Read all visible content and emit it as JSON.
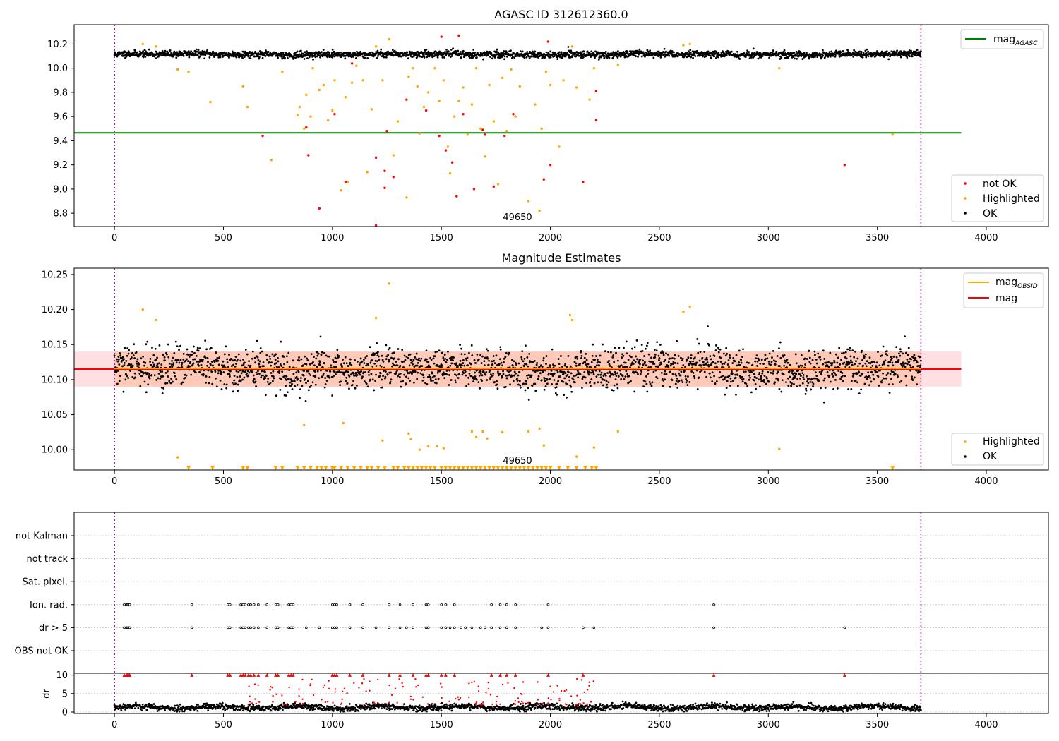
{
  "chart_data": [
    {
      "id": "panel-agasc",
      "type": "scatter",
      "title": "AGASC ID 312612360.0",
      "xlim": [
        -185,
        4285
      ],
      "ylim": [
        8.69,
        10.36
      ],
      "x_ticks": [
        0,
        500,
        1000,
        1500,
        2000,
        2500,
        3000,
        3500,
        4000
      ],
      "y_ticks": [
        8.8,
        9.0,
        9.2,
        9.4,
        9.6,
        9.8,
        10.0,
        10.2
      ],
      "y_tick_labels": [
        "8.8",
        "9.0",
        "9.2",
        "9.4",
        "9.6",
        "9.8",
        "10.0",
        "10.2"
      ],
      "vlines": [
        0,
        3700
      ],
      "hline": {
        "name": "mag_AGASC",
        "y": 9.465,
        "x": [
          -185,
          3885
        ],
        "color": "#008000"
      },
      "annotation": {
        "text": "49650",
        "x": 1850,
        "y": 8.73
      },
      "legend_upper": [
        {
          "label": "mag",
          "sub": "AGASC",
          "color": "#008000",
          "kind": "line"
        }
      ],
      "legend_lower": [
        {
          "label": "not OK",
          "color": "#ff0000",
          "kind": "dot"
        },
        {
          "label": "Highlighted",
          "color": "#ffa500",
          "kind": "dot"
        },
        {
          "label": "OK",
          "color": "#000000",
          "kind": "dot"
        }
      ],
      "series": [
        {
          "name": "OK",
          "color": "#000000",
          "x_range": [
            0,
            3700
          ],
          "y_center": 10.115,
          "y_spread": 0.025,
          "points": 2400
        },
        {
          "name": "Highlighted",
          "color": "#ffa500",
          "points_xy": [
            [
              130,
              10.2
            ],
            [
              190,
              10.18
            ],
            [
              290,
              9.99
            ],
            [
              340,
              9.97
            ],
            [
              440,
              9.72
            ],
            [
              590,
              9.85
            ],
            [
              610,
              9.68
            ],
            [
              720,
              9.24
            ],
            [
              770,
              9.97
            ],
            [
              840,
              9.61
            ],
            [
              850,
              9.68
            ],
            [
              870,
              9.5
            ],
            [
              880,
              9.78
            ],
            [
              900,
              9.6
            ],
            [
              910,
              10.0
            ],
            [
              940,
              9.82
            ],
            [
              960,
              9.86
            ],
            [
              980,
              9.57
            ],
            [
              1000,
              9.65
            ],
            [
              1010,
              9.9
            ],
            [
              1040,
              8.99
            ],
            [
              1060,
              9.76
            ],
            [
              1070,
              9.06
            ],
            [
              1090,
              9.88
            ],
            [
              1110,
              10.02
            ],
            [
              1140,
              9.9
            ],
            [
              1160,
              9.14
            ],
            [
              1180,
              9.66
            ],
            [
              1200,
              10.18
            ],
            [
              1230,
              9.9
            ],
            [
              1260,
              10.24
            ],
            [
              1280,
              9.28
            ],
            [
              1300,
              9.56
            ],
            [
              1340,
              8.93
            ],
            [
              1350,
              9.93
            ],
            [
              1370,
              10.0
            ],
            [
              1390,
              9.85
            ],
            [
              1400,
              9.46
            ],
            [
              1420,
              9.68
            ],
            [
              1440,
              9.8
            ],
            [
              1470,
              10.0
            ],
            [
              1490,
              9.73
            ],
            [
              1510,
              9.9
            ],
            [
              1530,
              9.35
            ],
            [
              1540,
              9.13
            ],
            [
              1560,
              9.6
            ],
            [
              1580,
              9.73
            ],
            [
              1600,
              9.84
            ],
            [
              1620,
              9.45
            ],
            [
              1640,
              9.7
            ],
            [
              1660,
              10.0
            ],
            [
              1680,
              9.5
            ],
            [
              1700,
              9.27
            ],
            [
              1720,
              9.86
            ],
            [
              1740,
              9.56
            ],
            [
              1760,
              9.04
            ],
            [
              1780,
              9.92
            ],
            [
              1800,
              9.48
            ],
            [
              1820,
              9.99
            ],
            [
              1840,
              9.6
            ],
            [
              1860,
              9.85
            ],
            [
              1900,
              8.9
            ],
            [
              1930,
              9.7
            ],
            [
              1950,
              8.82
            ],
            [
              1960,
              9.5
            ],
            [
              1980,
              9.97
            ],
            [
              2000,
              9.86
            ],
            [
              2040,
              9.35
            ],
            [
              2060,
              9.9
            ],
            [
              2100,
              10.18
            ],
            [
              2120,
              9.84
            ],
            [
              2180,
              9.74
            ],
            [
              2200,
              10.0
            ],
            [
              2310,
              10.03
            ],
            [
              2610,
              10.19
            ],
            [
              2640,
              10.2
            ],
            [
              3050,
              10.0
            ],
            [
              3570,
              9.45
            ]
          ]
        },
        {
          "name": "not OK",
          "color": "#ff0000",
          "points_xy": [
            [
              680,
              9.44
            ],
            [
              880,
              9.51
            ],
            [
              890,
              9.28
            ],
            [
              940,
              8.84
            ],
            [
              1010,
              9.62
            ],
            [
              1060,
              9.06
            ],
            [
              1090,
              10.04
            ],
            [
              1200,
              9.26
            ],
            [
              1200,
              8.7
            ],
            [
              1240,
              9.01
            ],
            [
              1240,
              9.15
            ],
            [
              1250,
              9.48
            ],
            [
              1280,
              9.1
            ],
            [
              1340,
              9.74
            ],
            [
              1430,
              9.65
            ],
            [
              1490,
              9.44
            ],
            [
              1500,
              10.26
            ],
            [
              1520,
              9.32
            ],
            [
              1550,
              9.22
            ],
            [
              1570,
              8.94
            ],
            [
              1580,
              10.27
            ],
            [
              1600,
              9.62
            ],
            [
              1650,
              9.0
            ],
            [
              1690,
              9.49
            ],
            [
              1700,
              9.45
            ],
            [
              1740,
              9.02
            ],
            [
              1790,
              9.44
            ],
            [
              1830,
              9.62
            ],
            [
              1970,
              9.08
            ],
            [
              1990,
              10.22
            ],
            [
              2000,
              9.2
            ],
            [
              2150,
              9.06
            ],
            [
              2210,
              9.57
            ],
            [
              2210,
              9.81
            ],
            [
              3350,
              9.2
            ]
          ]
        }
      ]
    },
    {
      "id": "panel-estimates",
      "type": "scatter",
      "title": "Magnitude Estimates",
      "xlim": [
        -185,
        4285
      ],
      "ylim": [
        9.971,
        10.259
      ],
      "x_ticks": [
        0,
        500,
        1000,
        1500,
        2000,
        2500,
        3000,
        3500,
        4000
      ],
      "y_ticks": [
        10.0,
        10.05,
        10.1,
        10.15,
        10.2,
        10.25
      ],
      "y_tick_labels": [
        "10.00",
        "10.05",
        "10.10",
        "10.15",
        "10.20",
        "10.25"
      ],
      "vlines": [
        0,
        3700
      ],
      "band_full": {
        "y": [
          10.09,
          10.14
        ],
        "x": [
          -185,
          3885
        ],
        "color": "#ffdfe2"
      },
      "band_obs": {
        "y": [
          10.09,
          10.14
        ],
        "x": [
          0,
          3700
        ],
        "color": "#ffc9b8"
      },
      "hline_mag": {
        "name": "mag",
        "y": 10.115,
        "x": [
          -185,
          3885
        ],
        "color": "#ff0000"
      },
      "hline_obsid": {
        "name": "mag_OBSID",
        "y": 10.115,
        "x": [
          0,
          3700
        ],
        "color": "#ffa500"
      },
      "annotation": {
        "text": "49650",
        "x": 1850,
        "y": 9.984
      },
      "legend_upper": [
        {
          "label": "mag",
          "sub": "OBSID",
          "color": "#ffa500",
          "kind": "line"
        },
        {
          "label": "mag",
          "sub": "",
          "color": "#ff0000",
          "kind": "line"
        }
      ],
      "legend_lower": [
        {
          "label": "Highlighted",
          "color": "#ffa500",
          "kind": "dot"
        },
        {
          "label": "OK",
          "color": "#000000",
          "kind": "dot"
        }
      ],
      "series": [
        {
          "name": "OK",
          "color": "#000000",
          "x_range": [
            0,
            3700
          ],
          "y_center": 10.115,
          "y_spread": 0.025,
          "points": 2400
        },
        {
          "name": "Highlighted",
          "color": "#ffa500",
          "points_xy": [
            [
              130,
              10.2
            ],
            [
              190,
              10.185
            ],
            [
              290,
              9.989
            ],
            [
              870,
              10.035
            ],
            [
              1050,
              10.038
            ],
            [
              1200,
              10.188
            ],
            [
              1230,
              10.013
            ],
            [
              1260,
              10.237
            ],
            [
              1350,
              10.023
            ],
            [
              1360,
              10.015
            ],
            [
              1400,
              10.0
            ],
            [
              1440,
              10.005
            ],
            [
              1480,
              10.005
            ],
            [
              1510,
              10.002
            ],
            [
              1640,
              10.026
            ],
            [
              1660,
              10.018
            ],
            [
              1690,
              10.026
            ],
            [
              1710,
              10.016
            ],
            [
              1780,
              10.025
            ],
            [
              1900,
              10.026
            ],
            [
              1950,
              10.03
            ],
            [
              1970,
              10.006
            ],
            [
              2090,
              10.192
            ],
            [
              2100,
              10.185
            ],
            [
              2120,
              9.99
            ],
            [
              2200,
              10.003
            ],
            [
              2310,
              10.026
            ],
            [
              2610,
              10.197
            ],
            [
              2640,
              10.204
            ],
            [
              3050,
              10.001
            ]
          ]
        },
        {
          "name": "Highlighted (below range)",
          "color": "#ffa500",
          "marker": "triangle-down",
          "y": 9.974,
          "x_values": [
            340,
            450,
            590,
            610,
            740,
            770,
            840,
            870,
            900,
            930,
            950,
            970,
            1000,
            1010,
            1040,
            1070,
            1100,
            1130,
            1160,
            1180,
            1210,
            1240,
            1280,
            1300,
            1330,
            1350,
            1370,
            1390,
            1410,
            1430,
            1450,
            1470,
            1500,
            1520,
            1540,
            1560,
            1580,
            1600,
            1620,
            1640,
            1660,
            1680,
            1700,
            1720,
            1740,
            1760,
            1780,
            1800,
            1820,
            1840,
            1860,
            1880,
            1900,
            1920,
            1940,
            1960,
            1980,
            2000,
            2040,
            2080,
            2120,
            2160,
            2190,
            2210,
            3570
          ]
        }
      ]
    },
    {
      "id": "panel-flags",
      "type": "scatter",
      "xlim": [
        -185,
        4285
      ],
      "x_ticks": [
        0,
        500,
        1000,
        1500,
        2000,
        2500,
        3000,
        3500,
        4000
      ],
      "vlines": [
        0,
        3700
      ],
      "flag_rows": [
        "not Kalman",
        "not track",
        "Sat. pixel.",
        "Ion. rad.",
        "dr > 5",
        "OBS not OK"
      ],
      "flag_x": {
        "Ion. rad.": [
          45,
          55,
          60,
          65,
          70,
          355,
          520,
          530,
          580,
          590,
          600,
          615,
          625,
          640,
          660,
          700,
          740,
          750,
          800,
          810,
          820,
          1000,
          1010,
          1020,
          1080,
          1140,
          1260,
          1310,
          1370,
          1430,
          1440,
          1500,
          1520,
          1560,
          1730,
          1770,
          1800,
          1840,
          1990,
          2750
        ],
        "dr > 5": [
          45,
          55,
          60,
          65,
          70,
          355,
          520,
          530,
          580,
          590,
          600,
          615,
          625,
          640,
          660,
          700,
          740,
          750,
          800,
          810,
          820,
          880,
          940,
          1000,
          1010,
          1020,
          1080,
          1140,
          1200,
          1260,
          1310,
          1340,
          1370,
          1430,
          1440,
          1500,
          1520,
          1540,
          1560,
          1590,
          1610,
          1640,
          1680,
          1700,
          1730,
          1770,
          1800,
          1840,
          1960,
          1990,
          2150,
          2200,
          2750,
          3350
        ]
      },
      "dr_panel": {
        "ylabel": "dr",
        "ylim": [
          0,
          10.5
        ],
        "y_ticks": [
          0,
          5,
          10
        ],
        "OK": {
          "color": "#000000",
          "x_range": [
            0,
            3700
          ],
          "y_center": 1.3,
          "y_spread": 0.7,
          "points": 2000
        },
        "not OK": {
          "color": "#ff0000",
          "x_range": [
            600,
            2200
          ],
          "y_range": [
            2,
            9
          ],
          "points": 160
        },
        "capped": {
          "color": "#ff0000",
          "y": 10,
          "x_values": [
            45,
            55,
            60,
            65,
            70,
            355,
            520,
            530,
            580,
            590,
            600,
            615,
            625,
            640,
            660,
            700,
            740,
            750,
            800,
            810,
            820,
            1000,
            1010,
            1020,
            1080,
            1140,
            1260,
            1310,
            1370,
            1430,
            1440,
            1500,
            1520,
            1560,
            1730,
            1770,
            1800,
            1840,
            1990,
            2150,
            2750,
            3350
          ]
        }
      }
    }
  ]
}
